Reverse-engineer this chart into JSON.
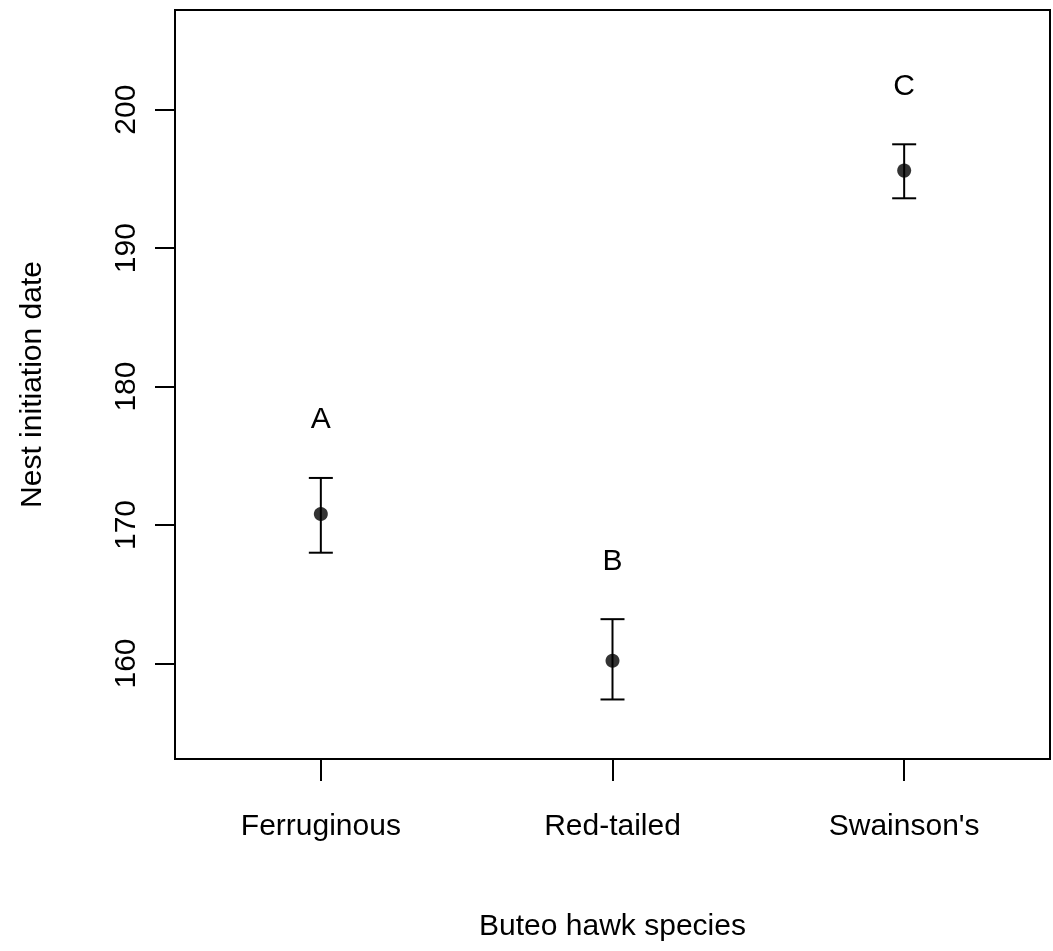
{
  "chart_data": {
    "type": "scatter",
    "xlabel": "Buteo hawk species",
    "ylabel": "Nest initiation date",
    "categories": [
      "Ferruginous",
      "Red-tailed",
      "Swainson's"
    ],
    "values": [
      170.8,
      160.2,
      195.6
    ],
    "errors": [
      [
        168.0,
        173.4
      ],
      [
        157.4,
        163.2
      ],
      [
        193.6,
        197.5
      ]
    ],
    "color": "#000000",
    "marker": "circle",
    "grid": false,
    "ylim": [
      153.1,
      207.2
    ],
    "yticks": [
      160,
      170,
      180,
      190,
      200
    ],
    "annotations": [
      "A",
      "B",
      "C"
    ]
  }
}
